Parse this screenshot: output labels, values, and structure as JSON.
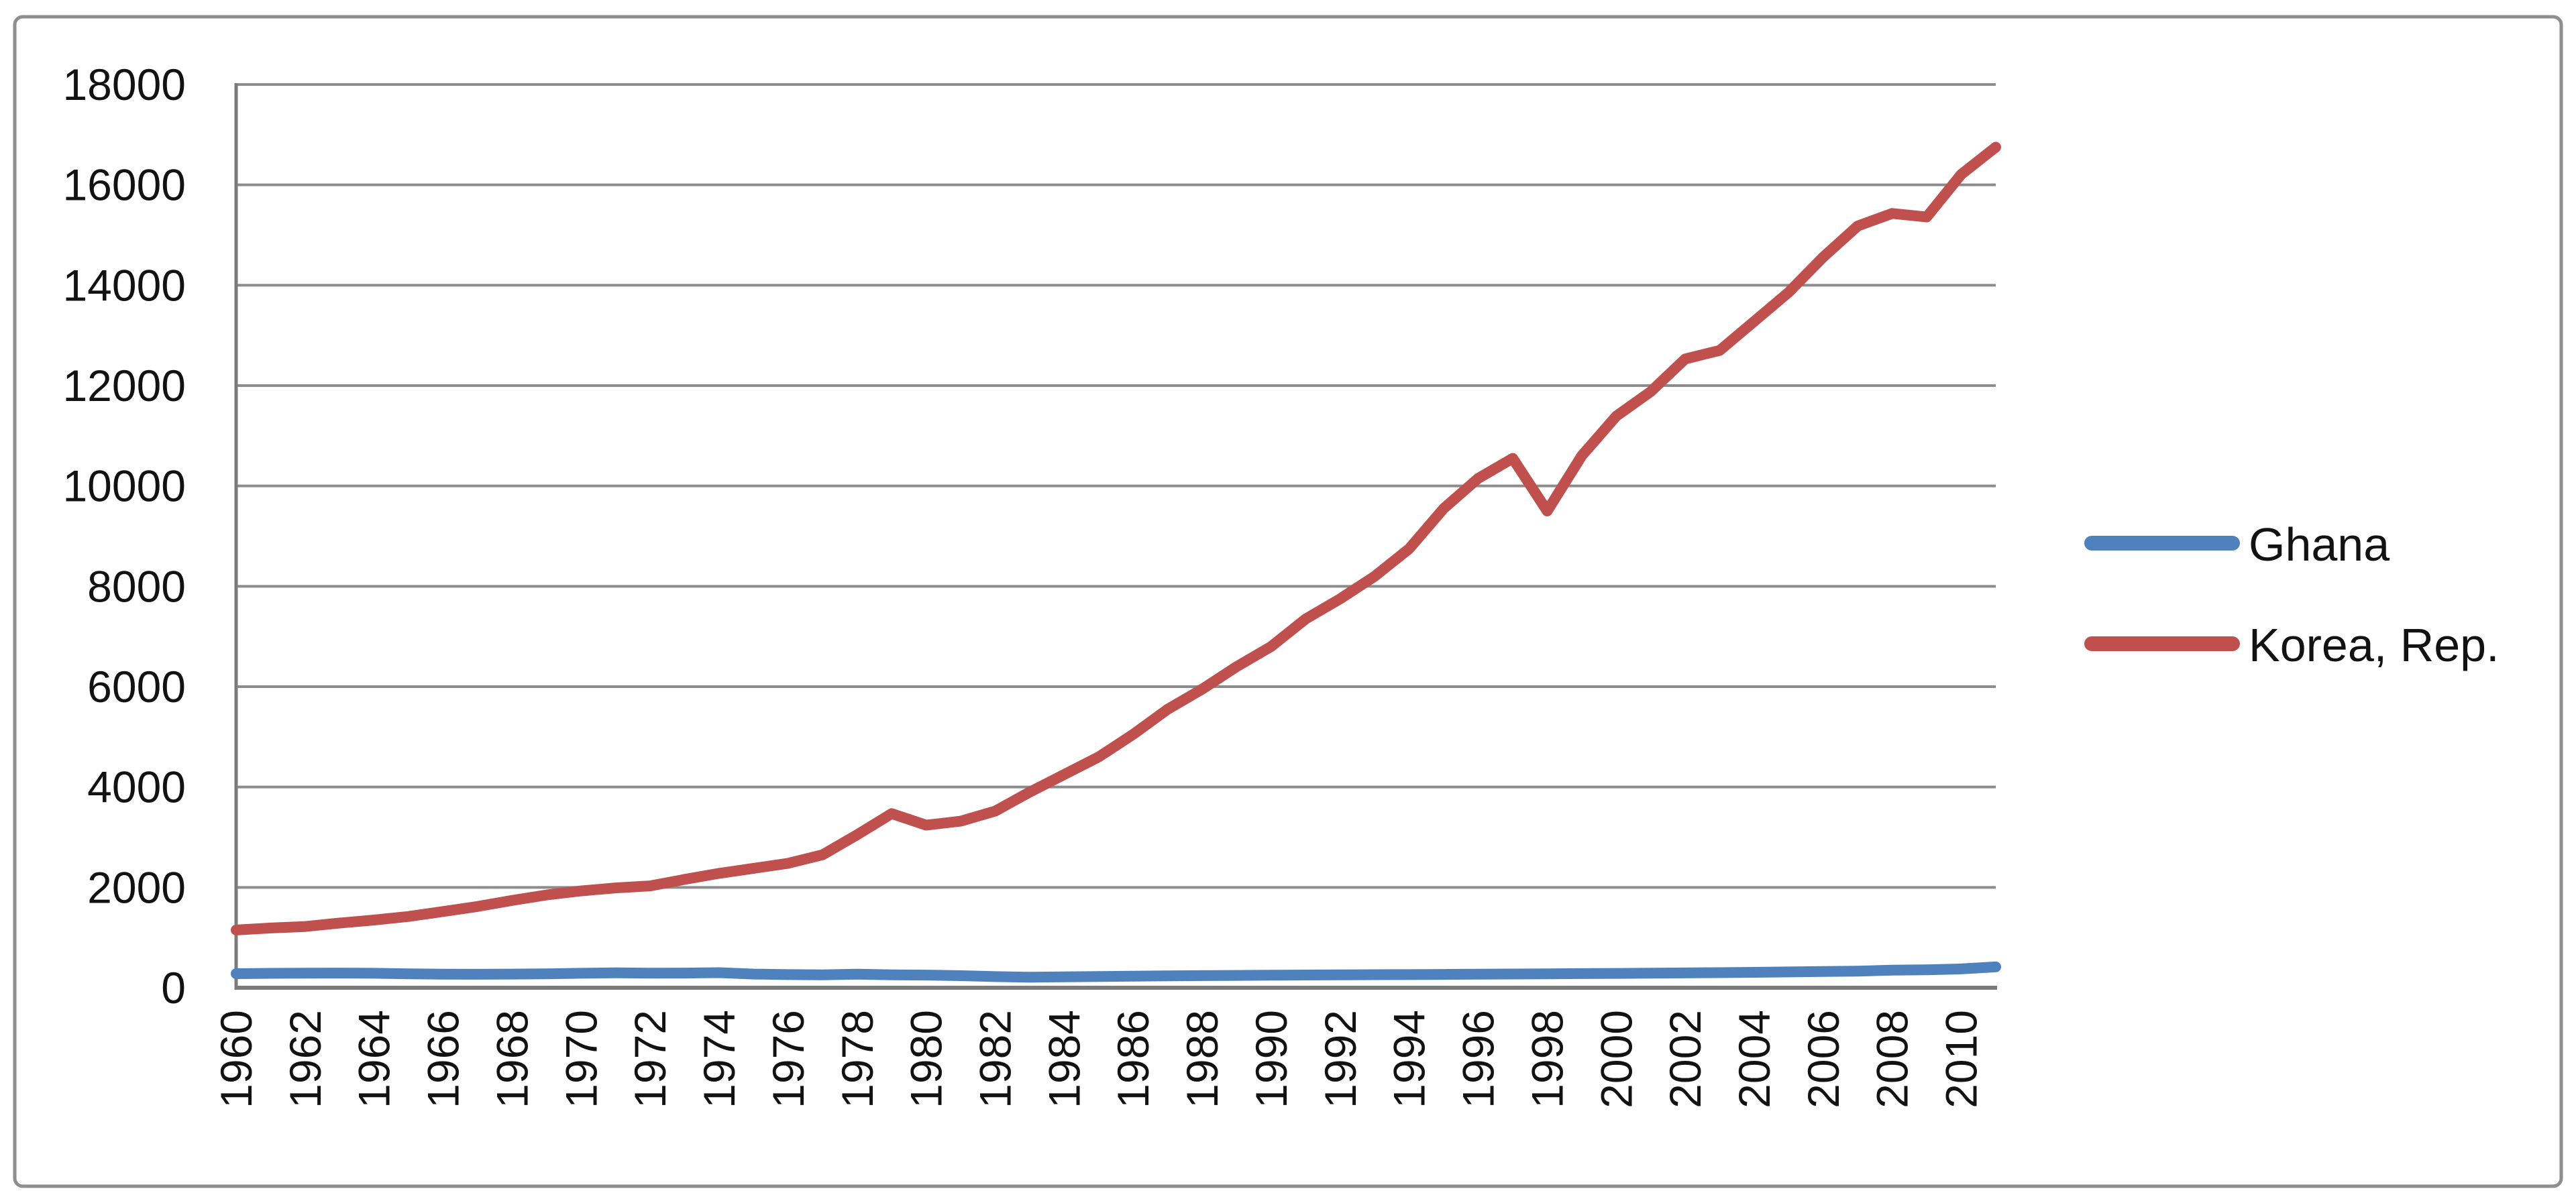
{
  "chart_data": {
    "type": "line",
    "title": "",
    "xlabel": "",
    "ylabel": "",
    "x": [
      1960,
      1961,
      1962,
      1963,
      1964,
      1965,
      1966,
      1967,
      1968,
      1969,
      1970,
      1971,
      1972,
      1973,
      1974,
      1975,
      1976,
      1977,
      1978,
      1979,
      1980,
      1981,
      1982,
      1983,
      1984,
      1985,
      1986,
      1987,
      1988,
      1989,
      1990,
      1991,
      1992,
      1993,
      1994,
      1995,
      1996,
      1997,
      1998,
      1999,
      2000,
      2001,
      2002,
      2003,
      2004,
      2005,
      2006,
      2007,
      2008,
      2009,
      2010,
      2011
    ],
    "series": [
      {
        "name": "Ghana",
        "color": "#4F81BD",
        "values": [
          281,
          287,
          291,
          293,
          289,
          278,
          270,
          268,
          272,
          278,
          288,
          296,
          290,
          293,
          300,
          272,
          262,
          258,
          270,
          258,
          252,
          240,
          222,
          210,
          218,
          224,
          230,
          236,
          242,
          246,
          250,
          254,
          257,
          260,
          262,
          266,
          270,
          274,
          278,
          282,
          286,
          290,
          295,
          301,
          308,
          315,
          323,
          332,
          350,
          358,
          376,
          415
        ]
      },
      {
        "name": "Korea, Rep.",
        "color": "#C0504D",
        "values": [
          1150,
          1190,
          1220,
          1290,
          1350,
          1420,
          1520,
          1620,
          1740,
          1850,
          1930,
          1990,
          2030,
          2160,
          2280,
          2380,
          2480,
          2650,
          3050,
          3470,
          3240,
          3320,
          3520,
          3900,
          4250,
          4600,
          5050,
          5550,
          5950,
          6400,
          6800,
          7350,
          7750,
          8200,
          8750,
          9550,
          10150,
          10550,
          9500,
          10600,
          11390,
          11880,
          12530,
          12700,
          13280,
          13860,
          14560,
          15180,
          15430,
          15360,
          16210,
          16750
        ]
      }
    ],
    "ylim": [
      0,
      18000
    ],
    "y_ticks": [
      0,
      2000,
      4000,
      6000,
      8000,
      10000,
      12000,
      14000,
      16000,
      18000
    ],
    "y_tick_labels": [
      "0",
      "2000",
      "4000",
      "6000",
      "8000",
      "10000",
      "12000",
      "14000",
      "16000",
      "18000"
    ],
    "x_tick_labels": [
      "1960",
      "1962",
      "1964",
      "1966",
      "1968",
      "1970",
      "1972",
      "1974",
      "1976",
      "1978",
      "1980",
      "1982",
      "1984",
      "1986",
      "1988",
      "1990",
      "1992",
      "1994",
      "1996",
      "1998",
      "2000",
      "2002",
      "2004",
      "2006",
      "2008",
      "2010"
    ],
    "x_tick_step": 2,
    "grid": true,
    "legend_position": "right-middle"
  },
  "legend": {
    "items": [
      {
        "label": "Ghana",
        "color": "#4F81BD"
      },
      {
        "label": "Korea, Rep.",
        "color": "#C0504D"
      }
    ]
  },
  "colors": {
    "background": "#ffffff",
    "gridline": "#8C8C8C",
    "axis": "#7B7B7B",
    "frame_border": "#8E8E8E",
    "tick_text": "#121212"
  }
}
